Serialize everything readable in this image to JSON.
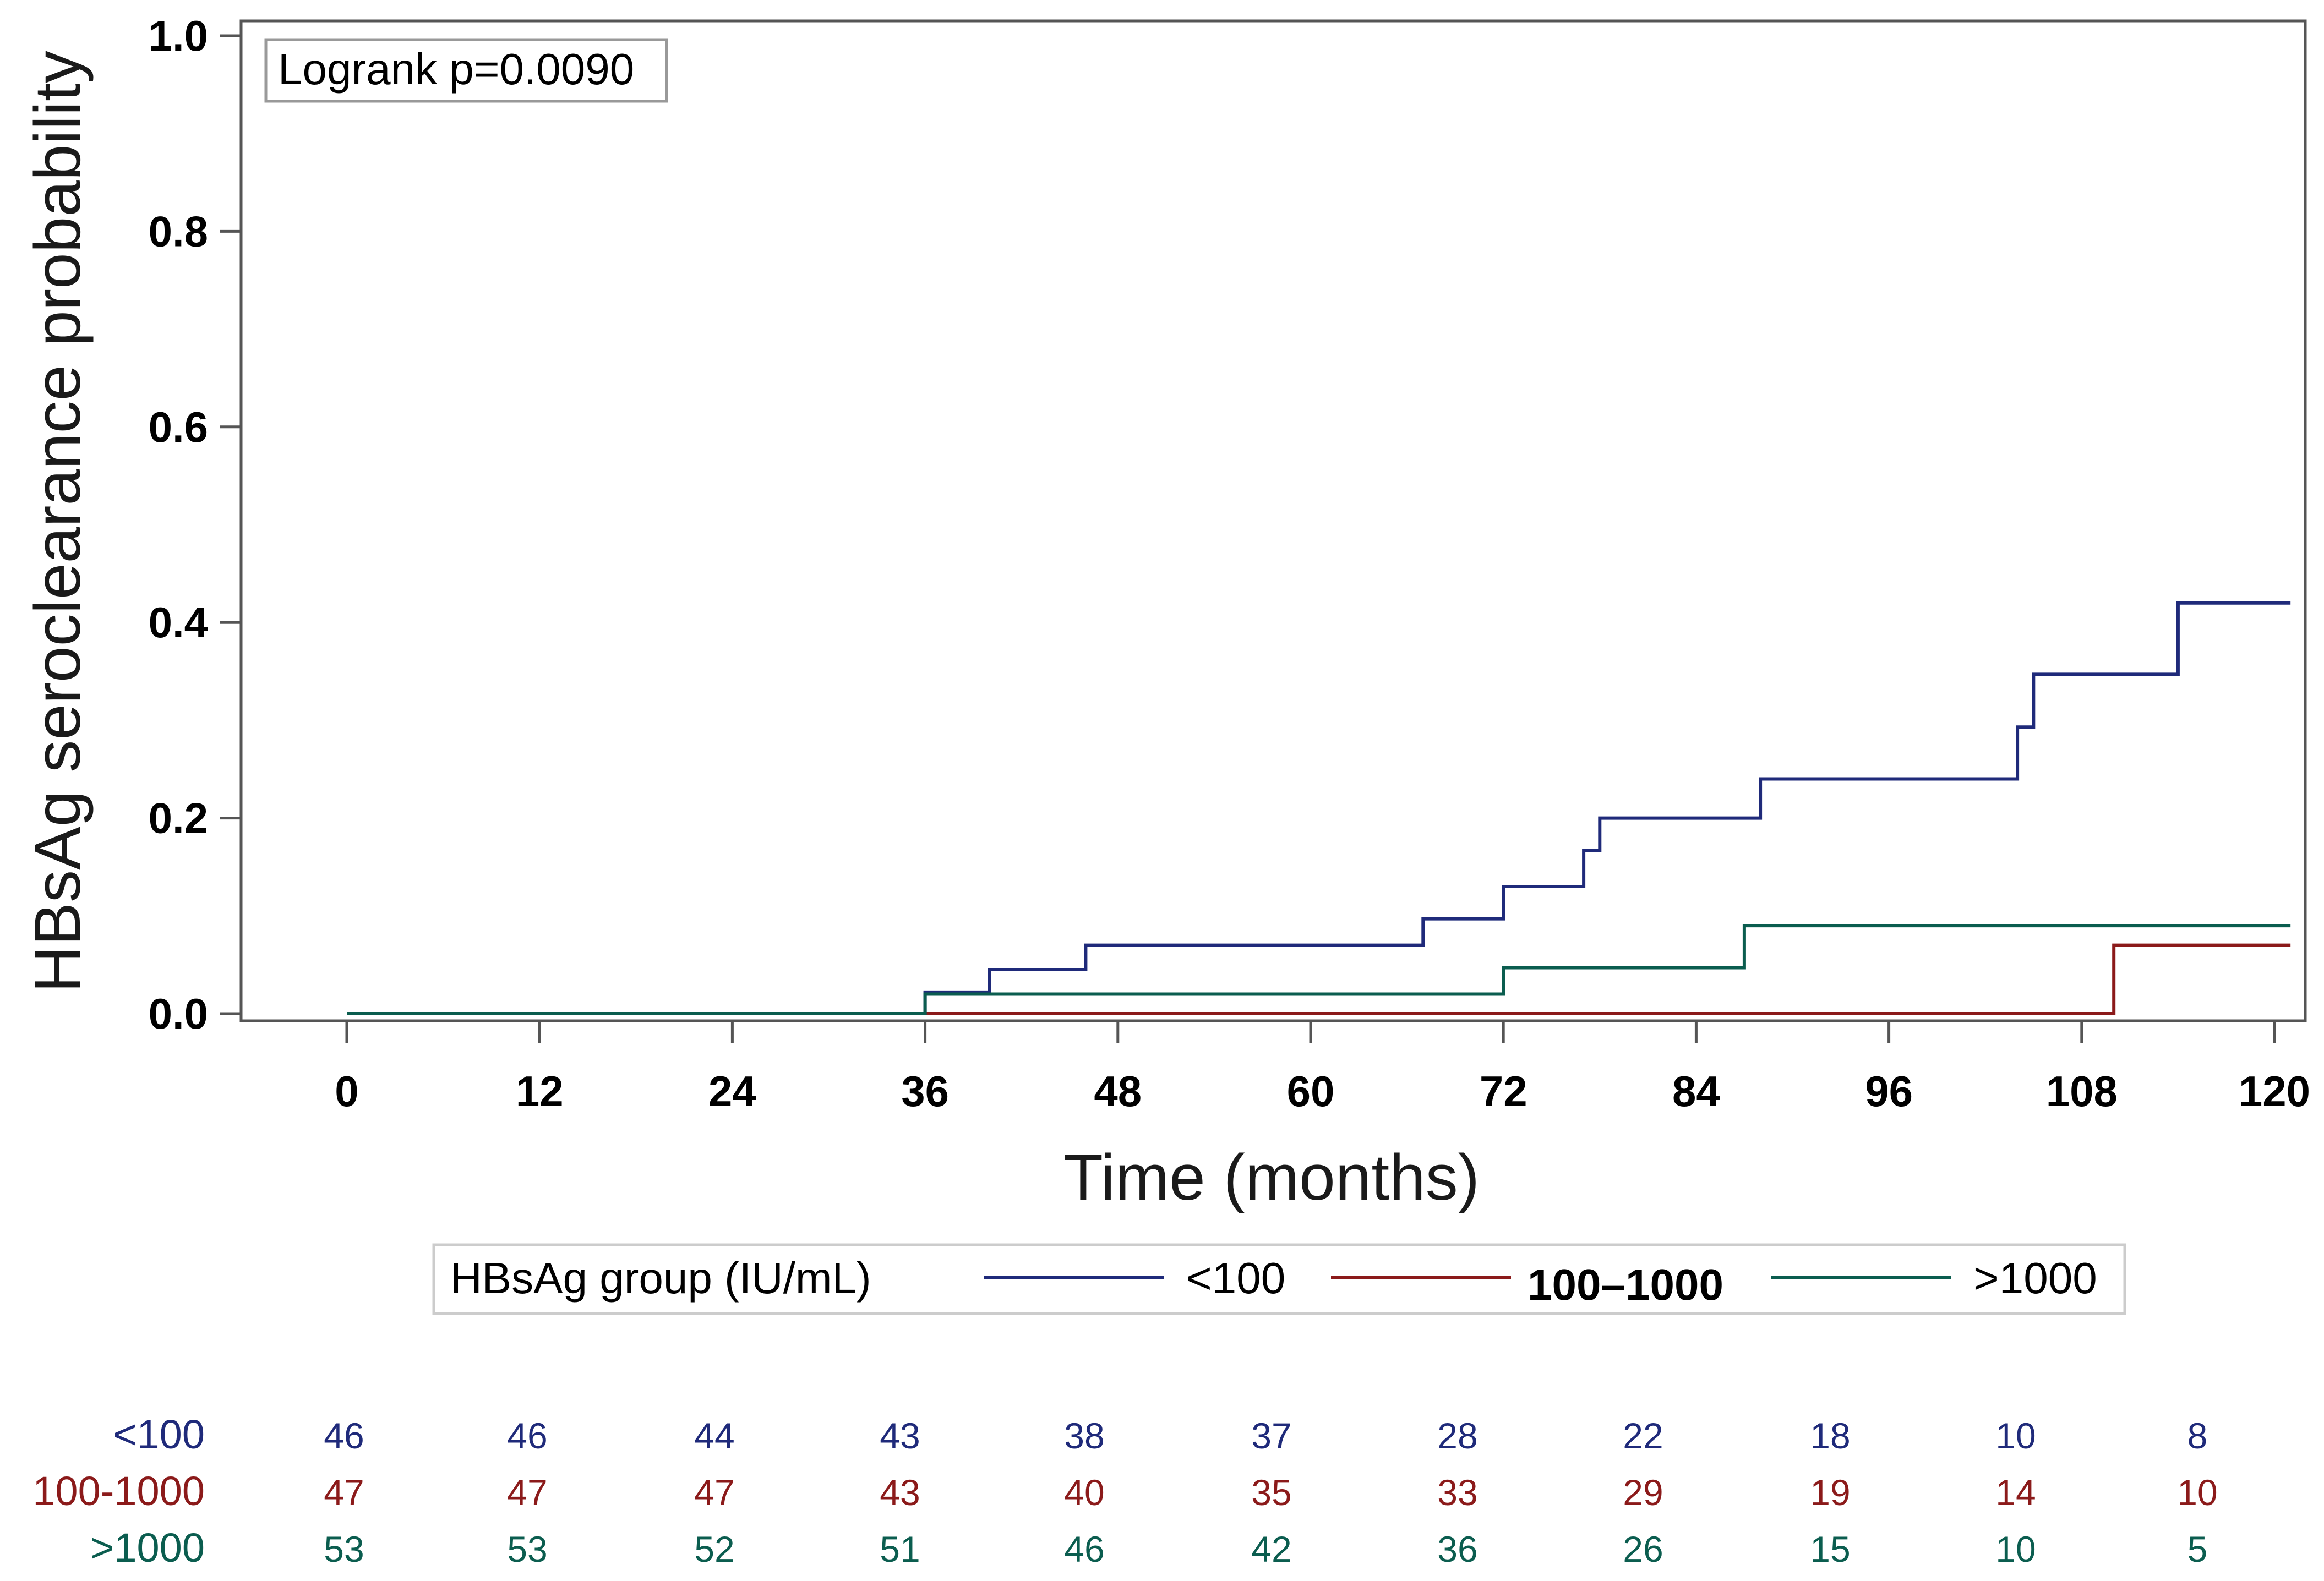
{
  "chart_data": {
    "type": "line",
    "subtype": "kaplan-meier-step",
    "annotation": "Logrank p=0.0090",
    "xlabel": "Time (months)",
    "ylabel": "HBsAg seroclearance probability",
    "xlim": [
      0,
      120
    ],
    "ylim": [
      0,
      1.0
    ],
    "xticks": [
      "0",
      "12",
      "24",
      "36",
      "48",
      "60",
      "72",
      "84",
      "96",
      "108",
      "120"
    ],
    "yticks": [
      "0.0",
      "0.2",
      "0.4",
      "0.6",
      "0.8",
      "1.0"
    ],
    "grid": false,
    "legend": {
      "title": "HBsAg group (IU/mL)",
      "placement": "bottom"
    },
    "series": [
      {
        "name": "<100",
        "color": "#1f2a7a",
        "points": [
          [
            0,
            0.0
          ],
          [
            36,
            0.0
          ],
          [
            36,
            0.022
          ],
          [
            40,
            0.022
          ],
          [
            40,
            0.045
          ],
          [
            46,
            0.045
          ],
          [
            46,
            0.07
          ],
          [
            67,
            0.07
          ],
          [
            67,
            0.097
          ],
          [
            72,
            0.097
          ],
          [
            72,
            0.13
          ],
          [
            77,
            0.13
          ],
          [
            77,
            0.167
          ],
          [
            78,
            0.167
          ],
          [
            78,
            0.2
          ],
          [
            88,
            0.2
          ],
          [
            88,
            0.24
          ],
          [
            104,
            0.24
          ],
          [
            104,
            0.293
          ],
          [
            105,
            0.293
          ],
          [
            105,
            0.347
          ],
          [
            114,
            0.347
          ],
          [
            114,
            0.42
          ],
          [
            121,
            0.42
          ]
        ]
      },
      {
        "name": "100–1000",
        "color": "#8b1a1a",
        "points": [
          [
            36,
            0.0
          ],
          [
            110,
            0.0
          ],
          [
            110,
            0.07
          ],
          [
            121,
            0.07
          ]
        ]
      },
      {
        "name": ">1000",
        "color": "#0b5d4f",
        "points": [
          [
            0,
            0.0
          ],
          [
            36,
            0.0
          ],
          [
            36,
            0.02
          ],
          [
            72,
            0.02
          ],
          [
            72,
            0.047
          ],
          [
            87,
            0.047
          ],
          [
            87,
            0.09
          ],
          [
            121,
            0.09
          ]
        ]
      }
    ],
    "risk_table": {
      "times": [
        0,
        12,
        24,
        36,
        48,
        60,
        72,
        84,
        96,
        108,
        120
      ],
      "rows": [
        {
          "label": "<100",
          "color": "#1f2a7a",
          "values": [
            "46",
            "46",
            "44",
            "43",
            "38",
            "37",
            "28",
            "22",
            "18",
            "10",
            "8"
          ]
        },
        {
          "label": "100-1000",
          "color": "#8b1a1a",
          "values": [
            "47",
            "47",
            "47",
            "43",
            "40",
            "35",
            "33",
            "29",
            "19",
            "14",
            "10"
          ]
        },
        {
          "label": ">1000",
          "color": "#0b5d4f",
          "values": [
            "53",
            "53",
            "52",
            "51",
            "46",
            "42",
            "36",
            "26",
            "15",
            "10",
            "5"
          ]
        }
      ]
    }
  }
}
